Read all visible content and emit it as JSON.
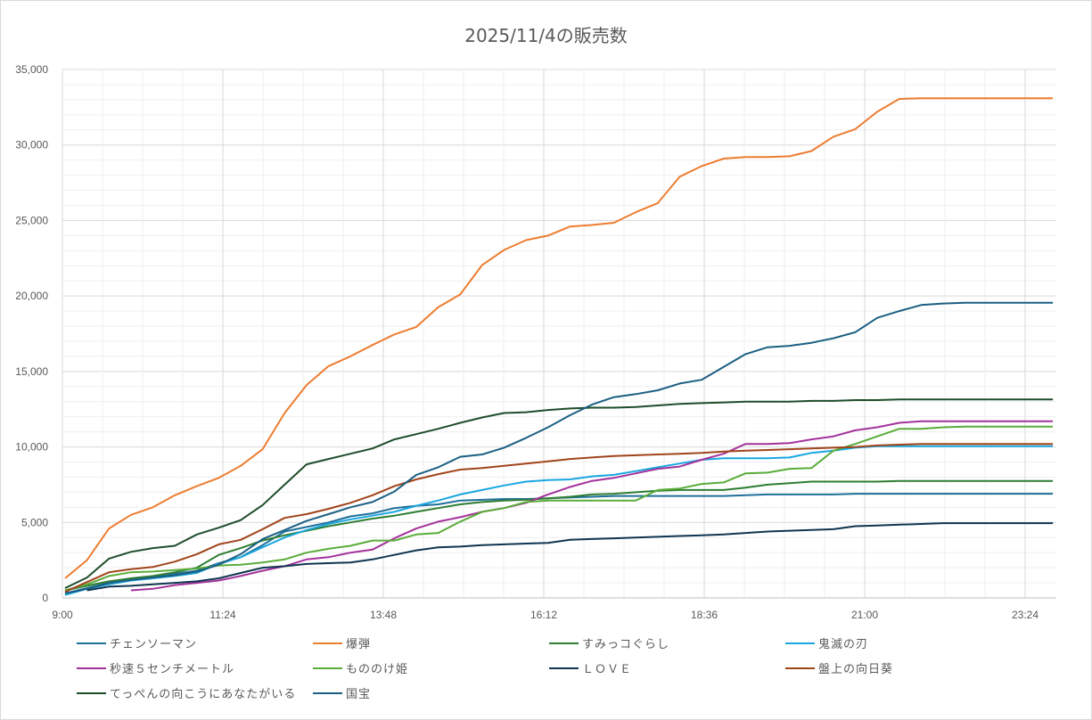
{
  "chart_data": {
    "type": "line",
    "title": "2025/11/4の販売数",
    "xlabel": "",
    "ylabel": "",
    "ylim": [
      0,
      35000
    ],
    "y_ticks": [
      "0",
      "5,000",
      "10,000",
      "15,000",
      "20,000",
      "25,000",
      "30,000",
      "35,000"
    ],
    "y_tick_values": [
      0,
      5000,
      10000,
      15000,
      20000,
      25000,
      30000,
      35000
    ],
    "x_ticks": [
      "9:00",
      "11:24",
      "13:48",
      "16:12",
      "18:36",
      "21:00",
      "23:24"
    ],
    "x_tick_minutes": [
      540,
      684,
      828,
      972,
      1116,
      1260,
      1404
    ],
    "x_start_minutes": 540,
    "x_step_minutes": 20,
    "grid": true,
    "legend_position": "bottom",
    "series": [
      {
        "name": "チェンソーマン",
        "color": "#1f6f9a",
        "start": 0,
        "values": [
          300,
          650,
          1000,
          1250,
          1400,
          1600,
          1800,
          2300,
          2700,
          3500,
          4400,
          4700,
          5000,
          5400,
          5600,
          5950,
          6100,
          6200,
          6450,
          6500,
          6550,
          6550,
          6600,
          6650,
          6700,
          6750,
          6750,
          6750,
          6750,
          6750,
          6750,
          6800,
          6850,
          6850,
          6850,
          6850,
          6900,
          6900,
          6900,
          6900,
          6900,
          6900,
          6900,
          6900,
          6900,
          6900
        ]
      },
      {
        "name": "爆弾",
        "color": "#ed7d31",
        "start": 0,
        "values": [
          1300,
          2500,
          4600,
          5500,
          6000,
          6800,
          7400,
          7950,
          8750,
          9850,
          12250,
          14100,
          15350,
          16000,
          16750,
          17450,
          17950,
          19250,
          20100,
          22050,
          23050,
          23700,
          24000,
          24600,
          24700,
          24850,
          25550,
          26150,
          27900,
          28600,
          29100,
          29200,
          29200,
          29250,
          29600,
          30550,
          31050,
          32200,
          33050,
          33100,
          33100,
          33100,
          33100,
          33100,
          33100,
          33100
        ]
      },
      {
        "name": "すみっコぐらし",
        "color": "#2e7d32",
        "start": 0,
        "values": [
          500,
          800,
          1100,
          1300,
          1450,
          1700,
          2000,
          2850,
          3300,
          3800,
          4150,
          4450,
          4750,
          5000,
          5250,
          5450,
          5700,
          5950,
          6200,
          6350,
          6450,
          6500,
          6600,
          6700,
          6850,
          6900,
          7000,
          7100,
          7150,
          7150,
          7150,
          7300,
          7500,
          7600,
          7700,
          7700,
          7700,
          7700,
          7750,
          7750,
          7750,
          7750,
          7750,
          7750,
          7750,
          7750
        ]
      },
      {
        "name": "鬼滅の刃",
        "color": "#1aa7e0",
        "start": 0,
        "values": [
          200,
          600,
          900,
          1150,
          1300,
          1450,
          1650,
          2250,
          2700,
          3350,
          4000,
          4500,
          4900,
          5200,
          5450,
          5700,
          6100,
          6450,
          6850,
          7150,
          7450,
          7700,
          7800,
          7850,
          8050,
          8150,
          8400,
          8650,
          8900,
          9150,
          9250,
          9250,
          9250,
          9300,
          9600,
          9750,
          9950,
          10050,
          10050,
          10050,
          10050,
          10050,
          10050,
          10050,
          10050,
          10050
        ]
      },
      {
        "name": "秒速５センチメートル",
        "color": "#a4329b",
        "start": 3,
        "values": [
          500,
          600,
          850,
          1000,
          1150,
          1450,
          1800,
          2100,
          2550,
          2700,
          3000,
          3200,
          3950,
          4600,
          5050,
          5350,
          5700,
          5950,
          6300,
          6850,
          7350,
          7750,
          7950,
          8250,
          8550,
          8700,
          9150,
          9550,
          10200,
          10200,
          10250,
          10500,
          10700,
          11100,
          11300,
          11600,
          11700,
          11700,
          11700,
          11700,
          11700,
          11700,
          11700
        ]
      },
      {
        "name": "もののけ姫",
        "color": "#5aac3a",
        "start": 0,
        "values": [
          500,
          900,
          1450,
          1700,
          1750,
          1850,
          1950,
          2150,
          2200,
          2350,
          2550,
          3000,
          3250,
          3450,
          3800,
          3800,
          4200,
          4300,
          5050,
          5700,
          5950,
          6350,
          6450,
          6450,
          6450,
          6450,
          6450,
          7150,
          7250,
          7550,
          7650,
          8250,
          8300,
          8550,
          8600,
          9750,
          10200,
          10700,
          11200,
          11200,
          11300,
          11350,
          11350,
          11350,
          11350,
          11350
        ]
      },
      {
        "name": "ＬＯＶＥ",
        "color": "#0f3550",
        "start": 1,
        "values": [
          500,
          750,
          800,
          900,
          1000,
          1100,
          1300,
          1650,
          2000,
          2100,
          2250,
          2300,
          2350,
          2550,
          2850,
          3150,
          3350,
          3400,
          3500,
          3550,
          3600,
          3650,
          3850,
          3900,
          3950,
          4000,
          4050,
          4100,
          4150,
          4200,
          4300,
          4400,
          4450,
          4500,
          4550,
          4750,
          4800,
          4850,
          4900,
          4950,
          4950,
          4950,
          4950,
          4950,
          4950
        ]
      },
      {
        "name": "盤上の向日葵",
        "color": "#a0441a",
        "start": 0,
        "values": [
          400,
          1050,
          1700,
          1900,
          2050,
          2400,
          2900,
          3550,
          3850,
          4550,
          5300,
          5550,
          5900,
          6300,
          6800,
          7400,
          7850,
          8200,
          8500,
          8600,
          8750,
          8900,
          9050,
          9200,
          9300,
          9400,
          9450,
          9500,
          9550,
          9600,
          9700,
          9750,
          9800,
          9850,
          9900,
          9950,
          10000,
          10100,
          10150,
          10200,
          10200,
          10200,
          10200,
          10200,
          10200,
          10200
        ]
      },
      {
        "name": "てっぺんの向こうにあなたがいる",
        "color": "#1e4d2b",
        "start": 0,
        "values": [
          650,
          1350,
          2600,
          3050,
          3300,
          3450,
          4200,
          4650,
          5150,
          6150,
          7500,
          8850,
          9200,
          9550,
          9900,
          10500,
          10850,
          11200,
          11600,
          11950,
          12250,
          12300,
          12450,
          12550,
          12600,
          12600,
          12650,
          12750,
          12850,
          12900,
          12950,
          13000,
          13000,
          13000,
          13050,
          13050,
          13100,
          13100,
          13150,
          13150,
          13150,
          13150,
          13150,
          13150,
          13150,
          13150
        ]
      },
      {
        "name": "国宝",
        "color": "#1b5f82",
        "start": 0,
        "values": [
          300,
          600,
          1000,
          1200,
          1350,
          1500,
          1750,
          2200,
          2900,
          3900,
          4500,
          5100,
          5550,
          6000,
          6350,
          7050,
          8150,
          8650,
          9350,
          9500,
          9950,
          10600,
          11300,
          12100,
          12800,
          13300,
          13500,
          13750,
          14200,
          14450,
          15300,
          16150,
          16600,
          16700,
          16900,
          17200,
          17600,
          18550,
          19000,
          19400,
          19500,
          19550,
          19550,
          19550,
          19550,
          19550
        ]
      }
    ]
  }
}
